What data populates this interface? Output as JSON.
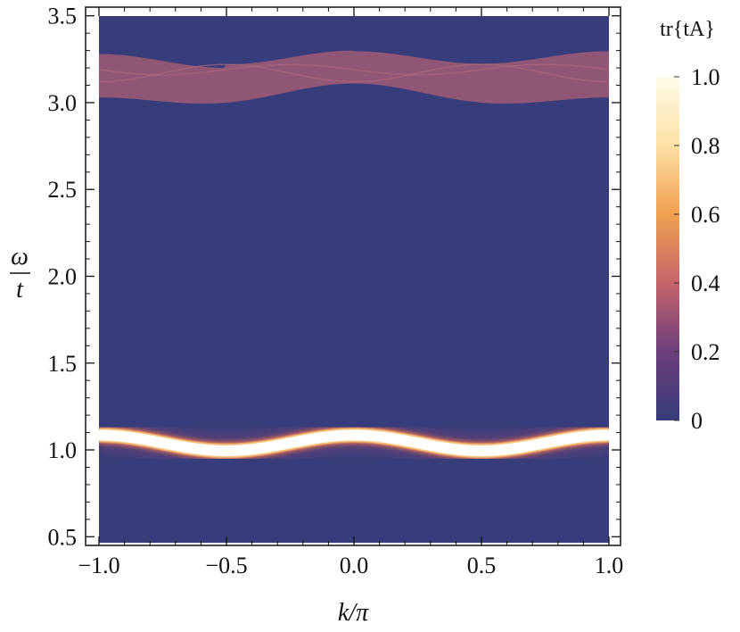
{
  "chart_data": {
    "type": "heatmap",
    "title": "",
    "xlabel": "k/π",
    "ylabel_num": "ω",
    "ylabel_den": "t",
    "xlim": [
      -1.0,
      1.0
    ],
    "ylim": [
      0.45,
      3.55
    ],
    "data_ylim": [
      0.45,
      3.5
    ],
    "xticks": [
      "−1.0",
      "−0.5",
      "0.0",
      "0.5",
      "1.0"
    ],
    "xtick_values": [
      -1.0,
      -0.5,
      0.0,
      0.5,
      1.0
    ],
    "yticks": [
      "0.5",
      "1.0",
      "1.5",
      "2.0",
      "2.5",
      "3.0",
      "3.5"
    ],
    "ytick_values": [
      0.5,
      1.0,
      1.5,
      2.0,
      2.5,
      3.0,
      3.5
    ],
    "colorbar": {
      "title": "tr{tA}",
      "ticks": [
        "0",
        "0.2",
        "0.4",
        "0.6",
        "0.8",
        "1.0"
      ],
      "tick_values": [
        0,
        0.2,
        0.4,
        0.6,
        0.8,
        1.0
      ],
      "colors": [
        "#373c7a",
        "#6b3f7a",
        "#c4646b",
        "#f0a050",
        "#fde1a6",
        "#fffbe8"
      ]
    },
    "background_color": "#373c7a",
    "features": [
      {
        "name": "lower band",
        "type": "sharp peak",
        "omega_center": 1.04,
        "omega_amplitude": 0.045,
        "period_k": 1.0,
        "max_at_k": [
          -1.0,
          0.0,
          1.0
        ],
        "min_at_k": [
          -0.5,
          0.5
        ],
        "omega_at_max": 1.085,
        "omega_at_min": 0.995,
        "intensity": 1.0
      },
      {
        "name": "upper continuum",
        "type": "diffuse band",
        "upper_edge": {
          "omega_at_k0": 3.3,
          "omega_at_k1": 3.3,
          "omega_at_k05": 3.22
        },
        "lower_edge": {
          "omega_at_k0": 3.1,
          "omega_at_k1": 3.07,
          "omega_at_k05": 3.0
        },
        "crossing_lines": {
          "k0": 3.12,
          "k05": 3.22
        },
        "intensity": 0.3
      }
    ]
  }
}
